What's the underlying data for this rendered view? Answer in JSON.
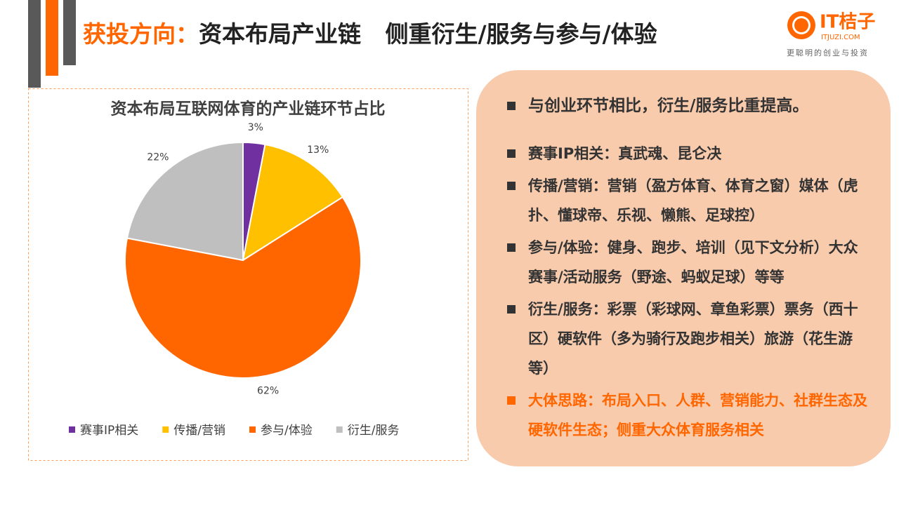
{
  "header": {
    "title_lead": "获投方向：",
    "title": "资本布局产业链   侧重衍生/服务与参与/体验"
  },
  "logo": {
    "name": "IT桔子",
    "site": "ITJUZI.COM",
    "tagline": "更聪明的创业与投资"
  },
  "chart_data": {
    "type": "pie",
    "title": "资本布局互联网体育的产业链环节占比",
    "categories": [
      "赛事IP相关",
      "传播/营销",
      "参与/体验",
      "衍生/服务"
    ],
    "values": [
      3,
      13,
      62,
      22
    ],
    "value_labels": [
      "3%",
      "13%",
      "62%",
      "22%"
    ],
    "colors": [
      "#7030a0",
      "#ffc000",
      "#ff6600",
      "#bfbfbf"
    ],
    "legend": "bottom"
  },
  "notes": {
    "items": [
      "与创业环节相比，衍生/服务比重提高。",
      "赛事IP相关：真武魂、昆仑决",
      "传播/营销：营销（盈方体育、体育之窗）媒体（虎扑、懂球帝、乐视、懒熊、足球控）",
      "参与/体验：健身、跑步、培训（见下文分析）大众赛事/活动服务（野途、蚂蚁足球）等等",
      "衍生/服务：彩票（彩球网、章鱼彩票）票务（西十区）硬软件（多为骑行及跑步相关）旅游（花生游等）",
      "大体思路：布局入口、人群、营销能力、社群生态及硬软件生态；侧重大众体育服务相关"
    ]
  }
}
